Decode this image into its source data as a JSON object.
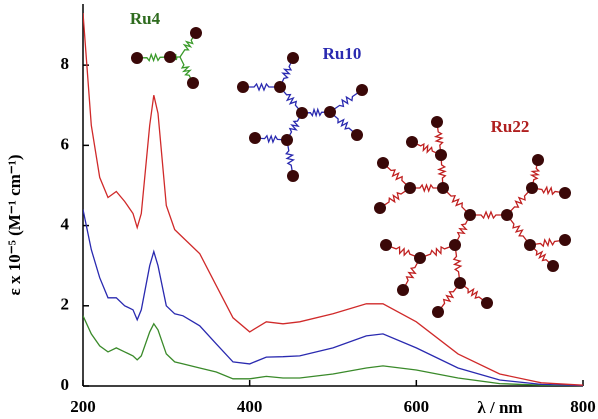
{
  "chart_data": {
    "type": "line",
    "x_label": "λ / nm",
    "y_label": "ε x 10⁻⁵ (M⁻¹ cm⁻¹)",
    "x": [
      200,
      210,
      220,
      230,
      240,
      250,
      260,
      265,
      270,
      280,
      285,
      290,
      300,
      310,
      320,
      340,
      360,
      380,
      400,
      420,
      440,
      460,
      500,
      540,
      560,
      600,
      650,
      700,
      750,
      800
    ],
    "series": [
      {
        "name": "Ru4",
        "color": "#3a8a2a",
        "values": [
          1.75,
          1.3,
          1.0,
          0.85,
          0.95,
          0.85,
          0.75,
          0.65,
          0.75,
          1.35,
          1.55,
          1.4,
          0.8,
          0.6,
          0.55,
          0.45,
          0.35,
          0.18,
          0.18,
          0.24,
          0.2,
          0.2,
          0.3,
          0.45,
          0.5,
          0.4,
          0.2,
          0.06,
          0.02,
          0.01
        ]
      },
      {
        "name": "Ru10",
        "color": "#2a2ab0",
        "values": [
          4.4,
          3.4,
          2.7,
          2.2,
          2.2,
          2.0,
          1.9,
          1.65,
          1.9,
          3.0,
          3.35,
          3.0,
          2.0,
          1.8,
          1.75,
          1.5,
          1.05,
          0.6,
          0.55,
          0.72,
          0.73,
          0.75,
          0.95,
          1.25,
          1.3,
          0.95,
          0.45,
          0.15,
          0.04,
          0.01
        ]
      },
      {
        "name": "Ru22",
        "color": "#d02a2a",
        "values": [
          9.3,
          6.5,
          5.2,
          4.7,
          4.85,
          4.6,
          4.3,
          3.95,
          4.3,
          6.5,
          7.25,
          6.8,
          4.5,
          3.9,
          3.7,
          3.3,
          2.5,
          1.7,
          1.35,
          1.6,
          1.55,
          1.6,
          1.8,
          2.05,
          2.05,
          1.6,
          0.8,
          0.3,
          0.08,
          0.02
        ]
      }
    ],
    "label_colors": [
      "#2e6b1e",
      "#2a2ab0",
      "#b02020"
    ],
    "xlim": [
      200,
      800
    ],
    "ylim": [
      0,
      9.4
    ],
    "xticks": [
      200,
      400,
      600,
      800
    ],
    "yticks": [
      0,
      2,
      4,
      6,
      8
    ],
    "grid": false
  }
}
